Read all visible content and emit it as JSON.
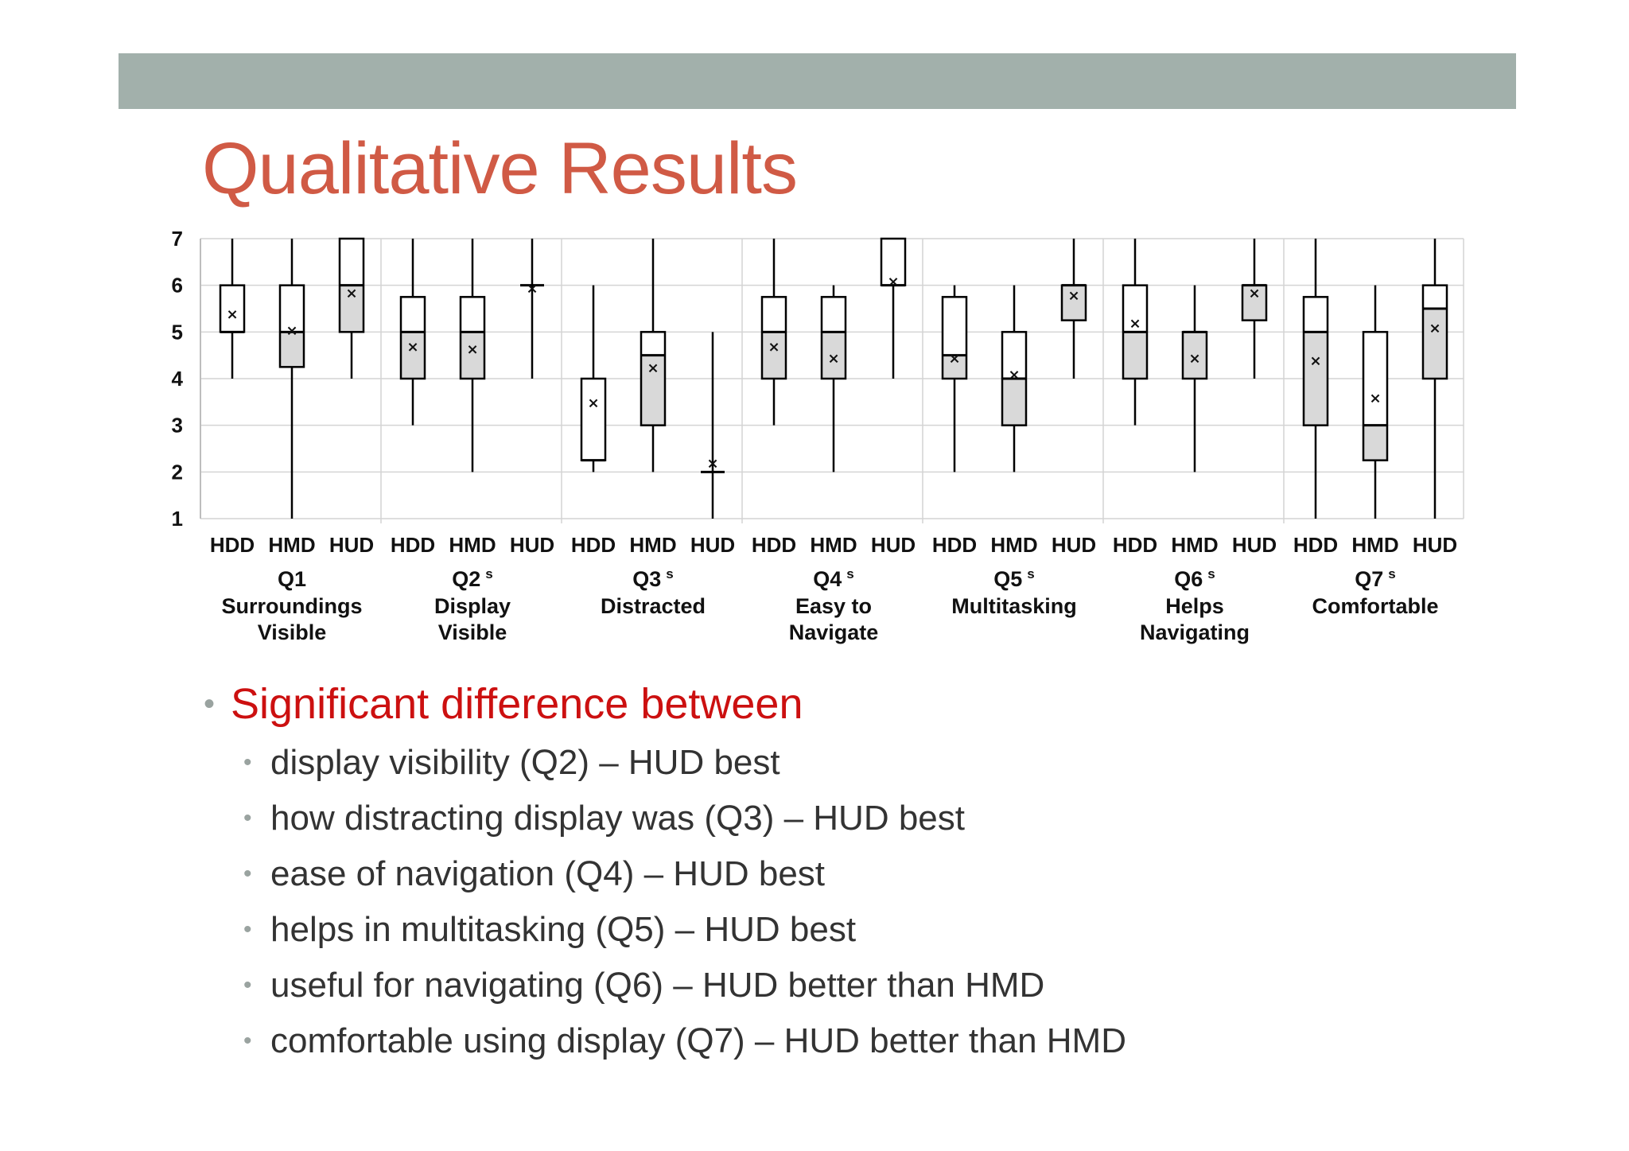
{
  "slide": {
    "title": "Qualitative Results",
    "bullet_main": "Significant difference between",
    "sub_bullets": [
      "display visibility (Q2) – HUD best",
      "how distracting display was (Q3) – HUD best",
      "ease of navigation (Q4) – HUD best",
      "helps in multitasking (Q5) – HUD best",
      "useful for navigating (Q6) – HUD better than HMD",
      "comfortable using display (Q7) – HUD better than HMD"
    ]
  },
  "colors": {
    "band": "#a2b0ab",
    "title": "#d05a45",
    "bullet_main": "#cc1010",
    "box_lower": "#d9d9d9",
    "box_upper": "#ffffff"
  },
  "chart_data": {
    "type": "boxplot",
    "ylim": [
      1,
      7
    ],
    "yticks": [
      "1",
      "2",
      "3",
      "4",
      "5",
      "6",
      "7"
    ],
    "grid": true,
    "groups": [
      {
        "id": "Q1",
        "sup": "",
        "label_lines": [
          "Surroundings",
          "Visible"
        ],
        "boxes": [
          {
            "name": "HDD",
            "min": 4,
            "q1": 5,
            "median": 5,
            "q3": 6,
            "max": 7,
            "mean": 5.4
          },
          {
            "name": "HMD",
            "min": 1,
            "q1": 4.25,
            "median": 5,
            "q3": 6,
            "max": 7,
            "mean": 5.05
          },
          {
            "name": "HUD",
            "min": 4,
            "q1": 5,
            "median": 6,
            "q3": 7,
            "max": 7,
            "mean": 5.85
          }
        ]
      },
      {
        "id": "Q2",
        "sup": "s",
        "label_lines": [
          "Display",
          "Visible"
        ],
        "boxes": [
          {
            "name": "HDD",
            "min": 3,
            "q1": 4,
            "median": 5,
            "q3": 5.75,
            "max": 7,
            "mean": 4.7
          },
          {
            "name": "HMD",
            "min": 2,
            "q1": 4,
            "median": 5,
            "q3": 5.75,
            "max": 7,
            "mean": 4.65
          },
          {
            "name": "HUD",
            "min": 4,
            "q1": 6,
            "median": 6,
            "q3": 6,
            "max": 7,
            "mean": 5.95
          }
        ]
      },
      {
        "id": "Q3",
        "sup": "s",
        "label_lines": [
          "Distracted"
        ],
        "boxes": [
          {
            "name": "HDD",
            "min": 2,
            "q1": 2.25,
            "median": 2.25,
            "q3": 4,
            "max": 6,
            "mean": 3.5
          },
          {
            "name": "HMD",
            "min": 2,
            "q1": 3,
            "median": 4.5,
            "q3": 5,
            "max": 7,
            "mean": 4.25
          },
          {
            "name": "HUD",
            "min": 1,
            "q1": 2,
            "median": 2,
            "q3": 2,
            "max": 5,
            "mean": 2.2
          }
        ]
      },
      {
        "id": "Q4",
        "sup": "s",
        "label_lines": [
          "Easy to",
          "Navigate"
        ],
        "boxes": [
          {
            "name": "HDD",
            "min": 3,
            "q1": 4,
            "median": 5,
            "q3": 5.75,
            "max": 7,
            "mean": 4.7
          },
          {
            "name": "HMD",
            "min": 2,
            "q1": 4,
            "median": 5,
            "q3": 5.75,
            "max": 6,
            "mean": 4.45
          },
          {
            "name": "HUD",
            "min": 4,
            "q1": 6,
            "median": 6,
            "q3": 7,
            "max": 7,
            "mean": 6.1
          }
        ]
      },
      {
        "id": "Q5",
        "sup": "s",
        "label_lines": [
          "Multitasking"
        ],
        "boxes": [
          {
            "name": "HDD",
            "min": 2,
            "q1": 4,
            "median": 4.5,
            "q3": 5.75,
            "max": 6,
            "mean": 4.45
          },
          {
            "name": "HMD",
            "min": 2,
            "q1": 3,
            "median": 4,
            "q3": 5,
            "max": 6,
            "mean": 4.1
          },
          {
            "name": "HUD",
            "min": 4,
            "q1": 5.25,
            "median": 6,
            "q3": 6,
            "max": 7,
            "mean": 5.8
          }
        ]
      },
      {
        "id": "Q6",
        "sup": "s",
        "label_lines": [
          "Helps",
          "Navigating"
        ],
        "boxes": [
          {
            "name": "HDD",
            "min": 3,
            "q1": 4,
            "median": 5,
            "q3": 6,
            "max": 7,
            "mean": 5.2
          },
          {
            "name": "HMD",
            "min": 2,
            "q1": 4,
            "median": 5,
            "q3": 5,
            "max": 6,
            "mean": 4.45
          },
          {
            "name": "HUD",
            "min": 4,
            "q1": 5.25,
            "median": 6,
            "q3": 6,
            "max": 7,
            "mean": 5.85
          }
        ]
      },
      {
        "id": "Q7",
        "sup": "s",
        "label_lines": [
          "Comfortable"
        ],
        "boxes": [
          {
            "name": "HDD",
            "min": 1,
            "q1": 3,
            "median": 5,
            "q3": 5.75,
            "max": 7,
            "mean": 4.4
          },
          {
            "name": "HMD",
            "min": 1,
            "q1": 2.25,
            "median": 3,
            "q3": 5,
            "max": 6,
            "mean": 3.6
          },
          {
            "name": "HUD",
            "min": 1,
            "q1": 4,
            "median": 5.5,
            "q3": 6,
            "max": 7,
            "mean": 5.1
          }
        ]
      }
    ]
  }
}
